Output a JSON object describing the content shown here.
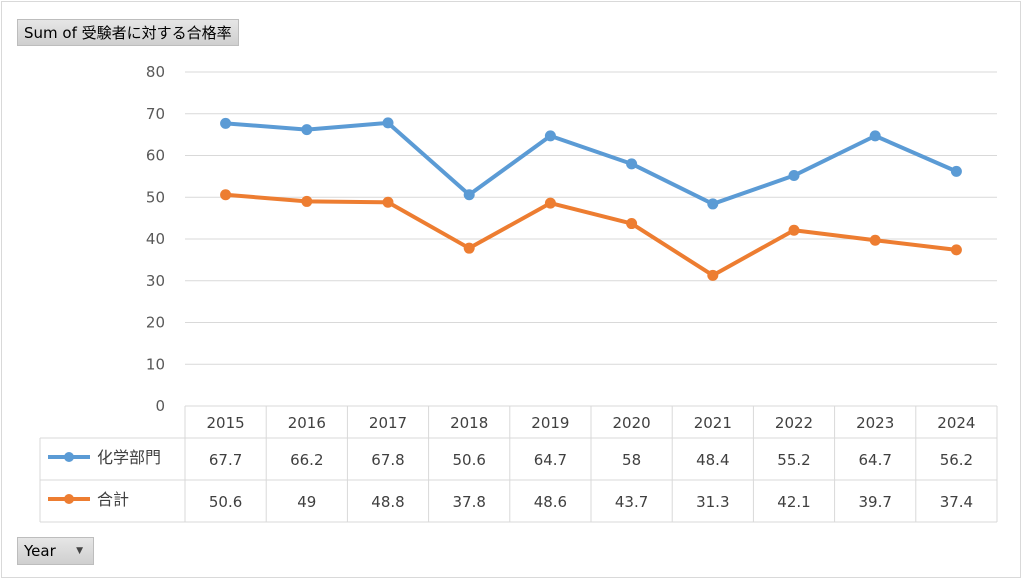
{
  "pivot": {
    "value_field_label": "Sum of 受験者に対する合格率",
    "axis_field_label": "Year",
    "dropdown_icon": "chevron-down-icon"
  },
  "chart_data": {
    "type": "line",
    "categories": [
      "2015",
      "2016",
      "2017",
      "2018",
      "2019",
      "2020",
      "2021",
      "2022",
      "2023",
      "2024"
    ],
    "series": [
      {
        "name": "化学部門",
        "color": "#5b9bd5",
        "values": [
          67.7,
          66.2,
          67.8,
          50.6,
          64.7,
          58,
          48.4,
          55.2,
          64.7,
          56.2
        ]
      },
      {
        "name": "合計",
        "color": "#ed7d31",
        "values": [
          50.6,
          49,
          48.8,
          37.8,
          48.6,
          43.7,
          31.3,
          42.1,
          39.7,
          37.4
        ]
      }
    ],
    "ylim": [
      0,
      80
    ],
    "yticks": [
      "0",
      "10",
      "20",
      "30",
      "40",
      "50",
      "60",
      "70",
      "80"
    ],
    "grid": true,
    "data_table": true,
    "title": "",
    "xlabel": "",
    "ylabel": ""
  }
}
